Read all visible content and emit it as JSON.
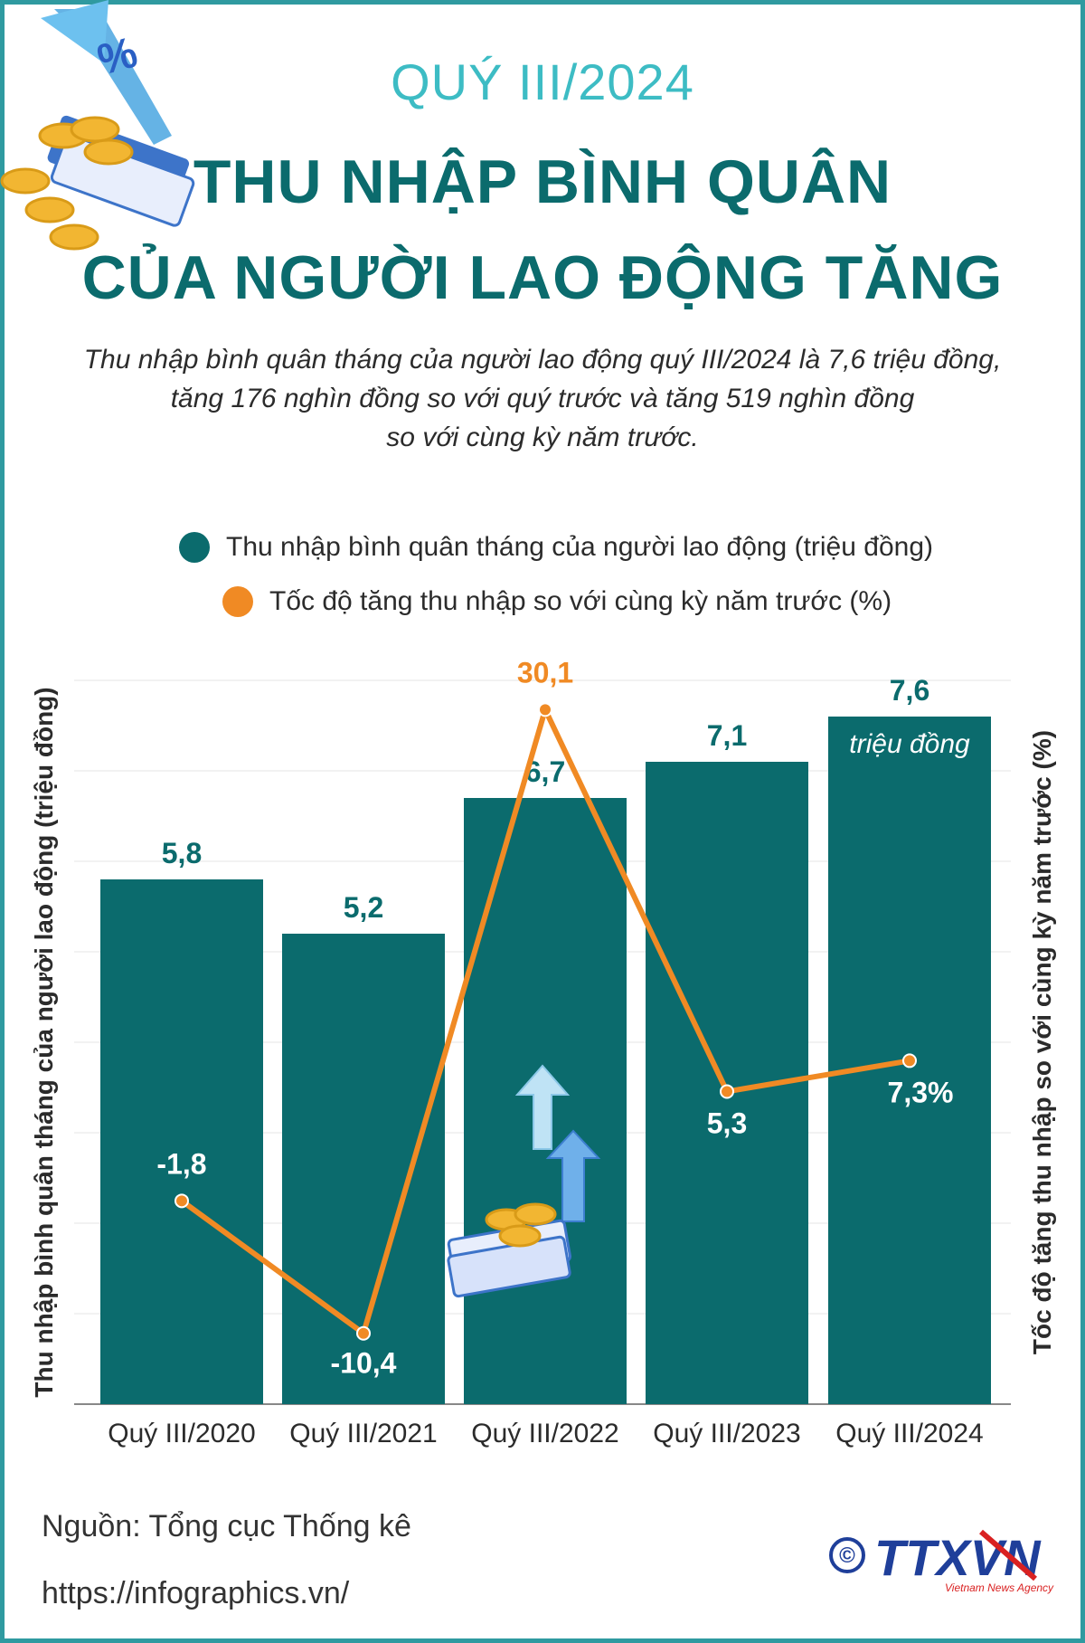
{
  "header": {
    "quarter": "QUÝ III/2024",
    "title_line1": "THU NHẬP BÌNH QUÂN",
    "title_line2": "CỦA NGƯỜI LAO ĐỘNG TĂNG",
    "subtitle_line1": "Thu nhập bình quân tháng của người lao động quý III/2024 là 7,6 triệu đồng,",
    "subtitle_line2": "tăng 176 nghìn đồng so với quý trước và tăng 519 nghìn đồng",
    "subtitle_line3": "so với cùng kỳ năm trước."
  },
  "colors": {
    "bar": "#0b6b6d",
    "line": "#f08a24",
    "title": "#0b6b6d",
    "accent": "#3dbcc4"
  },
  "chart_data": {
    "type": "bar",
    "categories": [
      "Quý III/2020",
      "Quý III/2021",
      "Quý III/2022",
      "Quý III/2023",
      "Quý III/2024"
    ],
    "series": [
      {
        "name": "Thu nhập bình quân tháng của người lao động (triệu đồng)",
        "type": "bar",
        "values": [
          5.8,
          5.2,
          6.7,
          7.1,
          7.6
        ],
        "labels": [
          "5,8",
          "5,2",
          "6,7",
          "7,1",
          "7,6"
        ],
        "last_unit_label": "triệu đồng"
      },
      {
        "name": "Tốc độ tăng thu nhập so với cùng kỳ năm trước (%)",
        "type": "line",
        "values": [
          -1.8,
          -10.4,
          30.1,
          5.3,
          7.3
        ],
        "labels": [
          "-1,8",
          "-10,4",
          "30,1",
          "5,3",
          "7,3%"
        ]
      }
    ],
    "ylabel_left": "Thu nhập bình quân tháng của người lao động (triệu đồng)",
    "ylabel_right": "Tốc độ tăng thu nhập so với cùng kỳ năm trước (%)",
    "ylim_left": [
      0,
      8
    ],
    "ylim_right": [
      -15,
      32
    ],
    "grid": true,
    "legend": "top"
  },
  "footer": {
    "source": "Nguồn: Tổng cục Thống kê",
    "url": "https://infographics.vn/",
    "logo_text": "TTXVN",
    "logo_sub": "Vietnam News Agency",
    "copyright": "©"
  }
}
